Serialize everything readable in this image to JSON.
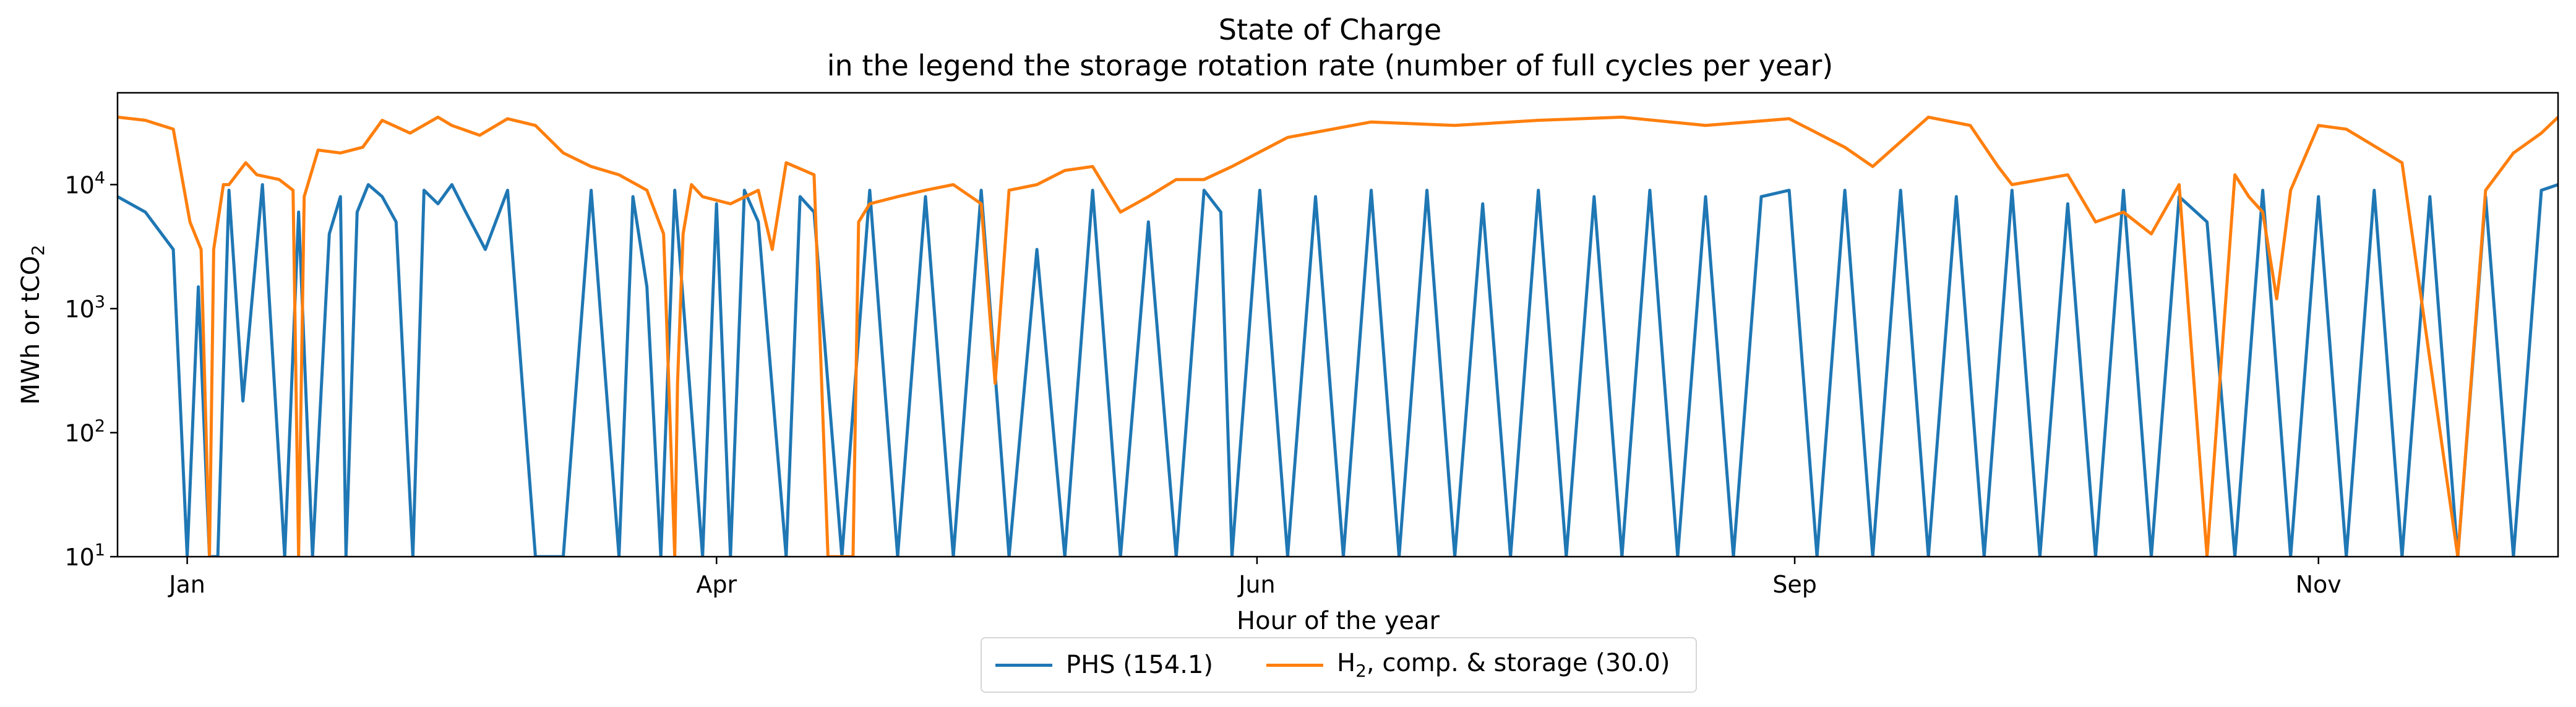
{
  "chart_data": {
    "type": "line",
    "title": "State of Charge",
    "subtitle": "in the legend the storage rotation rate (number of full cycles per year)",
    "xlabel": "Hour of the year",
    "ylabel": "MWh or tCO",
    "ylabel_sub": "2",
    "yscale": "log",
    "ylim": [
      10,
      55000
    ],
    "xlim": [
      0,
      8760
    ],
    "x_ticks": [
      {
        "label": "Jan",
        "x": 250
      },
      {
        "label": "Apr",
        "x": 2150
      },
      {
        "label": "Jun",
        "x": 4090
      },
      {
        "label": "Sep",
        "x": 6020
      },
      {
        "label": "Nov",
        "x": 7900
      }
    ],
    "y_ticks": [
      {
        "base": "10",
        "exp": "1",
        "value": 10
      },
      {
        "base": "10",
        "exp": "2",
        "value": 100
      },
      {
        "base": "10",
        "exp": "3",
        "value": 1000
      },
      {
        "base": "10",
        "exp": "4",
        "value": 10000
      }
    ],
    "legend_position": "bottom-center, below plot",
    "series": [
      {
        "name": "PHS (154.1)",
        "color": "#1f77b4",
        "x": [
          0,
          100,
          200,
          250,
          290,
          330,
          360,
          400,
          450,
          520,
          600,
          650,
          700,
          760,
          800,
          820,
          860,
          900,
          950,
          1000,
          1060,
          1100,
          1150,
          1200,
          1250,
          1320,
          1400,
          1500,
          1600,
          1700,
          1800,
          1850,
          1900,
          1950,
          2000,
          2100,
          2150,
          2200,
          2250,
          2300,
          2400,
          2450,
          2500,
          2600,
          2700,
          2800,
          2900,
          3000,
          3100,
          3200,
          3300,
          3400,
          3500,
          3600,
          3700,
          3800,
          3900,
          3960,
          4000,
          4100,
          4200,
          4300,
          4400,
          4500,
          4600,
          4700,
          4800,
          4900,
          5000,
          5100,
          5200,
          5300,
          5400,
          5500,
          5600,
          5700,
          5800,
          5900,
          6000,
          6100,
          6200,
          6300,
          6400,
          6500,
          6600,
          6700,
          6800,
          6900,
          7000,
          7100,
          7200,
          7300,
          7400,
          7500,
          7600,
          7700,
          7800,
          7900,
          8000,
          8100,
          8200,
          8300,
          8400,
          8500,
          8600,
          8700,
          8760
        ],
        "values": [
          8000,
          6000,
          3000,
          10,
          1500,
          10,
          10,
          9000,
          180,
          10000,
          10,
          6000,
          10,
          4000,
          8000,
          10,
          6000,
          10000,
          8000,
          5000,
          10,
          9000,
          7000,
          10000,
          6000,
          3000,
          9000,
          10,
          10,
          9000,
          10,
          8000,
          1500,
          10,
          9000,
          10,
          7000,
          10,
          9000,
          5000,
          10,
          8000,
          6000,
          10,
          9000,
          10,
          8000,
          10,
          9000,
          10,
          3000,
          10,
          9000,
          10,
          5000,
          10,
          9000,
          6000,
          10,
          9000,
          10,
          8000,
          10,
          9000,
          10,
          9000,
          10,
          7000,
          10,
          9000,
          10,
          8000,
          10,
          9000,
          10,
          8000,
          10,
          8000,
          9000,
          10,
          9000,
          10,
          9000,
          10,
          8000,
          10,
          9000,
          10,
          7000,
          10,
          9000,
          10,
          8000,
          5000,
          10,
          9000,
          10,
          8000,
          10,
          9000,
          10,
          8000,
          10,
          8000,
          10,
          9000,
          10000
        ]
      },
      {
        "name": "H₂, comp. & storage (30.0)",
        "name_parts": [
          "H",
          "2",
          ", comp. & storage (30.0)"
        ],
        "color": "#ff7f0e",
        "x": [
          0,
          100,
          200,
          260,
          300,
          330,
          345,
          380,
          400,
          460,
          500,
          580,
          630,
          650,
          670,
          720,
          800,
          880,
          950,
          1050,
          1150,
          1200,
          1300,
          1400,
          1500,
          1600,
          1700,
          1800,
          1900,
          1960,
          2000,
          2010,
          2030,
          2060,
          2100,
          2200,
          2300,
          2350,
          2400,
          2500,
          2550,
          2640,
          2660,
          2700,
          2800,
          2900,
          3000,
          3100,
          3150,
          3200,
          3300,
          3400,
          3500,
          3600,
          3700,
          3800,
          3900,
          4000,
          4200,
          4500,
          4800,
          5100,
          5400,
          5700,
          6000,
          6200,
          6300,
          6500,
          6650,
          6750,
          6800,
          7000,
          7100,
          7200,
          7300,
          7400,
          7500,
          7600,
          7650,
          7700,
          7750,
          7800,
          7900,
          8000,
          8200,
          8400,
          8500,
          8600,
          8700,
          8760
        ],
        "values": [
          35000,
          33000,
          28000,
          5000,
          3000,
          10,
          3000,
          10000,
          10000,
          15000,
          12000,
          11000,
          9000,
          10,
          8000,
          19000,
          18000,
          20000,
          33000,
          26000,
          35000,
          30000,
          25000,
          34000,
          30000,
          18000,
          14000,
          12000,
          9000,
          4000,
          10,
          250,
          4000,
          10000,
          8000,
          7000,
          9000,
          3000,
          15000,
          12000,
          10,
          10,
          5000,
          7000,
          8000,
          9000,
          10000,
          7000,
          250,
          9000,
          10000,
          13000,
          14000,
          6000,
          8000,
          11000,
          11000,
          14000,
          24000,
          32000,
          30000,
          33000,
          35000,
          30000,
          34000,
          20000,
          14000,
          35000,
          30000,
          14000,
          10000,
          12000,
          5000,
          6000,
          4000,
          10000,
          10,
          12000,
          8000,
          6000,
          1200,
          9000,
          30000,
          28000,
          15000,
          10,
          9000,
          18000,
          26000,
          35000
        ]
      }
    ]
  }
}
